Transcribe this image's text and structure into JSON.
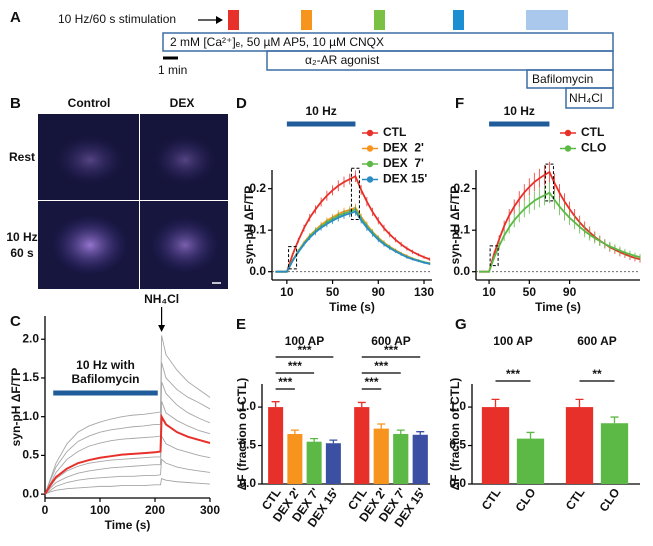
{
  "protocol": {
    "panel": "A",
    "stimulation": "10 Hz/60 s stimulation",
    "scale_bar": "1 min",
    "solutions": [
      "2 mM [Ca²⁺]ₑ, 50 µM AP5, 10 µM CNQX",
      "α₂-AR agonist",
      "Bafilomycin",
      "NH₄Cl"
    ]
  },
  "images": {
    "panel": "B",
    "columns": [
      "Control",
      "DEX"
    ],
    "rows": [
      [
        "Rest"
      ],
      [
        "10 Hz",
        "60 s"
      ]
    ]
  },
  "chart_data": [
    {
      "type": "line",
      "panel": "C",
      "xlabel": "Time (s)",
      "ylabel": "syn-pH ΔF/TP",
      "stim_label": [
        "10 Hz with",
        "Bafilomycin"
      ],
      "stim_bar": [
        15,
        205
      ],
      "arrow_label": "NH₄Cl",
      "arrow_x": 212,
      "x": [
        0,
        10,
        20,
        40,
        60,
        80,
        100,
        120,
        140,
        160,
        180,
        200,
        210,
        212,
        220,
        240,
        260,
        280,
        300
      ],
      "series": [
        {
          "color": "#a6a6a6",
          "values": [
            0,
            0.2,
            0.4,
            0.65,
            0.8,
            0.88,
            0.93,
            0.97,
            1.0,
            1.02,
            1.03,
            1.05,
            1.06,
            2.05,
            1.8,
            1.6,
            1.45,
            1.35,
            1.25
          ]
        },
        {
          "color": "#a6a6a6",
          "values": [
            0,
            0.18,
            0.35,
            0.55,
            0.68,
            0.75,
            0.8,
            0.83,
            0.85,
            0.87,
            0.88,
            0.9,
            0.9,
            1.7,
            1.5,
            1.35,
            1.25,
            1.18,
            1.1
          ]
        },
        {
          "color": "#a6a6a6",
          "values": [
            0,
            0.14,
            0.28,
            0.45,
            0.55,
            0.62,
            0.66,
            0.69,
            0.71,
            0.72,
            0.73,
            0.74,
            0.75,
            1.45,
            1.3,
            1.15,
            1.05,
            0.98,
            0.92
          ]
        },
        {
          "color": "#a6a6a6",
          "values": [
            0,
            0.1,
            0.2,
            0.3,
            0.36,
            0.4,
            0.42,
            0.44,
            0.45,
            0.46,
            0.47,
            0.48,
            0.48,
            1.2,
            1.05,
            0.95,
            0.88,
            0.82,
            0.78
          ]
        },
        {
          "color": "#a6a6a6",
          "values": [
            0,
            0.08,
            0.15,
            0.22,
            0.27,
            0.3,
            0.32,
            0.34,
            0.35,
            0.36,
            0.37,
            0.38,
            0.38,
            0.75,
            0.65,
            0.58,
            0.54,
            0.5,
            0.47
          ]
        },
        {
          "color": "#a6a6a6",
          "values": [
            0,
            0.05,
            0.1,
            0.15,
            0.18,
            0.2,
            0.21,
            0.22,
            0.23,
            0.23,
            0.24,
            0.24,
            0.25,
            0.45,
            0.4,
            0.35,
            0.32,
            0.3,
            0.28
          ]
        },
        {
          "color": "#a6a6a6",
          "values": [
            0,
            0.03,
            0.05,
            0.07,
            0.08,
            0.09,
            0.1,
            0.1,
            0.11,
            0.11,
            0.11,
            0.12,
            0.12,
            0.2,
            0.18,
            0.16,
            0.15,
            0.14,
            0.13
          ]
        },
        {
          "color": "#e8302a",
          "values": [
            0,
            0.12,
            0.22,
            0.33,
            0.4,
            0.44,
            0.47,
            0.49,
            0.51,
            0.52,
            0.53,
            0.54,
            0.55,
            1.0,
            0.9,
            0.8,
            0.74,
            0.7,
            0.66
          ]
        }
      ],
      "xlim": [
        0,
        300
      ],
      "xticks": [
        0,
        100,
        200,
        300
      ],
      "ylim": [
        -0.05,
        2.3
      ],
      "yticks": [
        {
          "value": 0,
          "label": "0.0"
        },
        {
          "value": 0.5,
          "label": "0.5"
        },
        {
          "value": 1,
          "label": "1.0"
        },
        {
          "value": 1.5,
          "label": "1.5"
        },
        {
          "value": 2,
          "label": "2.0"
        }
      ]
    },
    {
      "type": "line",
      "panel": "D",
      "xlabel": "Time (s)",
      "ylabel": "syn-pH ΔF/TP",
      "stim_label": "10 Hz",
      "stim_bar": [
        10,
        70
      ],
      "zero_line": true,
      "highlight_x": [
        15,
        70
      ],
      "x": [
        0,
        5,
        10,
        15,
        20,
        25,
        30,
        35,
        40,
        45,
        50,
        55,
        60,
        65,
        70,
        75,
        80,
        85,
        90,
        95,
        100,
        105,
        110,
        115,
        120,
        125,
        130,
        135
      ],
      "series": [
        {
          "name": "CTL",
          "color": "#e8302a",
          "values": [
            0,
            0,
            0,
            0.041,
            0.075,
            0.105,
            0.13,
            0.15,
            0.168,
            0.183,
            0.196,
            0.207,
            0.216,
            0.223,
            0.23,
            0.197,
            0.169,
            0.144,
            0.123,
            0.105,
            0.09,
            0.077,
            0.066,
            0.056,
            0.048,
            0.041,
            0.035,
            0.03
          ],
          "errors": [
            0,
            0,
            0,
            0.004,
            0.006,
            0.008,
            0.009,
            0.01,
            0.011,
            0.012,
            0.012,
            0.013,
            0.013,
            0.013,
            0.014,
            0.012,
            0.011,
            0.01,
            0.009,
            0.008,
            0.007,
            0.006,
            0.006,
            0.005,
            0.005,
            0.004,
            0.004,
            0.004
          ]
        },
        {
          "name": "DEX  2'",
          "color": "#f7941d",
          "values": [
            0,
            0,
            0,
            0.027,
            0.05,
            0.07,
            0.087,
            0.1,
            0.113,
            0.123,
            0.131,
            0.139,
            0.145,
            0.149,
            0.154,
            0.132,
            0.113,
            0.096,
            0.082,
            0.07,
            0.06,
            0.052,
            0.044,
            0.038,
            0.032,
            0.027,
            0.023,
            0.02
          ],
          "errors": [
            0,
            0,
            0,
            0.003,
            0.004,
            0.005,
            0.006,
            0.007,
            0.007,
            0.008,
            0.008,
            0.009,
            0.009,
            0.009,
            0.01,
            0.008,
            0.008,
            0.007,
            0.006,
            0.006,
            0.005,
            0.004,
            0.004,
            0.004,
            0.003,
            0.003,
            0.003,
            0.003
          ]
        },
        {
          "name": "DEX  7'",
          "color": "#5cb946",
          "values": [
            0,
            0,
            0,
            0.027,
            0.049,
            0.068,
            0.085,
            0.098,
            0.109,
            0.119,
            0.127,
            0.135,
            0.14,
            0.145,
            0.15,
            0.128,
            0.11,
            0.094,
            0.08,
            0.068,
            0.059,
            0.05,
            0.043,
            0.036,
            0.031,
            0.027,
            0.023,
            0.02
          ],
          "errors": [
            0,
            0,
            0,
            0.003,
            0.004,
            0.005,
            0.006,
            0.007,
            0.007,
            0.008,
            0.008,
            0.009,
            0.009,
            0.009,
            0.01,
            0.008,
            0.008,
            0.007,
            0.006,
            0.006,
            0.005,
            0.004,
            0.004,
            0.004,
            0.003,
            0.003,
            0.003,
            0.003
          ]
        },
        {
          "name": "DEX 15'",
          "color": "#2b8cc4",
          "values": [
            0,
            0,
            0,
            0.026,
            0.047,
            0.066,
            0.082,
            0.095,
            0.106,
            0.115,
            0.123,
            0.13,
            0.136,
            0.14,
            0.145,
            0.124,
            0.106,
            0.091,
            0.077,
            0.066,
            0.057,
            0.049,
            0.042,
            0.035,
            0.03,
            0.026,
            0.022,
            0.019
          ],
          "errors": [
            0,
            0,
            0,
            0.003,
            0.004,
            0.005,
            0.006,
            0.007,
            0.007,
            0.008,
            0.008,
            0.009,
            0.009,
            0.009,
            0.01,
            0.008,
            0.008,
            0.007,
            0.006,
            0.006,
            0.005,
            0.004,
            0.004,
            0.004,
            0.003,
            0.003,
            0.003,
            0.003
          ]
        }
      ],
      "xlim": [
        -3,
        137
      ],
      "xticks": [
        10,
        50,
        90,
        130
      ],
      "ylim": [
        -0.02,
        0.245
      ],
      "yticks": [
        {
          "value": 0,
          "label": "0.0"
        },
        {
          "value": 0.1,
          "label": "0.1"
        },
        {
          "value": 0.2,
          "label": "0.2"
        }
      ]
    },
    {
      "type": "line",
      "panel": "F",
      "xlabel": "Time (s)",
      "ylabel": "syn-pH ΔF/TP",
      "stim_label": "10 Hz",
      "stim_bar": [
        10,
        70
      ],
      "zero_line": true,
      "highlight_x": [
        15,
        70
      ],
      "x": [
        0,
        5,
        10,
        15,
        20,
        25,
        30,
        35,
        40,
        45,
        50,
        55,
        60,
        65,
        70,
        75,
        80,
        85,
        90,
        95,
        100,
        105,
        110,
        115,
        120,
        125,
        130,
        135,
        140,
        145,
        150,
        155,
        160
      ],
      "series": [
        {
          "name": "CTL",
          "color": "#e8302a",
          "values": [
            0,
            0,
            0,
            0.043,
            0.078,
            0.11,
            0.136,
            0.157,
            0.175,
            0.191,
            0.204,
            0.216,
            0.225,
            0.233,
            0.24,
            0.214,
            0.19,
            0.169,
            0.151,
            0.134,
            0.119,
            0.106,
            0.095,
            0.084,
            0.075,
            0.067,
            0.059,
            0.053,
            0.047,
            0.042,
            0.037,
            0.033,
            0.03
          ],
          "errors": [
            0,
            0,
            0,
            0.006,
            0.01,
            0.013,
            0.015,
            0.017,
            0.019,
            0.02,
            0.021,
            0.022,
            0.023,
            0.024,
            0.025,
            0.023,
            0.021,
            0.02,
            0.018,
            0.017,
            0.016,
            0.015,
            0.014,
            0.013,
            0.012,
            0.011,
            0.011,
            0.01,
            0.01,
            0.009,
            0.009,
            0.008,
            0.008
          ]
        },
        {
          "name": "CLO",
          "color": "#5cb946",
          "values": [
            0,
            0,
            0,
            0.034,
            0.062,
            0.087,
            0.107,
            0.124,
            0.138,
            0.151,
            0.161,
            0.171,
            0.178,
            0.184,
            0.19,
            0.173,
            0.157,
            0.143,
            0.13,
            0.119,
            0.108,
            0.098,
            0.089,
            0.081,
            0.074,
            0.067,
            0.061,
            0.056,
            0.051,
            0.046,
            0.042,
            0.038,
            0.035
          ],
          "errors": [
            0,
            0,
            0,
            0.006,
            0.01,
            0.013,
            0.015,
            0.017,
            0.019,
            0.02,
            0.021,
            0.022,
            0.023,
            0.024,
            0.025,
            0.023,
            0.021,
            0.02,
            0.018,
            0.017,
            0.016,
            0.015,
            0.014,
            0.013,
            0.012,
            0.011,
            0.011,
            0.01,
            0.01,
            0.009,
            0.009,
            0.008,
            0.008
          ]
        }
      ],
      "xlim": [
        -3,
        160
      ],
      "xticks": [
        10,
        50,
        90
      ],
      "ylim": [
        -0.02,
        0.245
      ],
      "yticks": [
        {
          "value": 0,
          "label": "0.0"
        },
        {
          "value": 0.1,
          "label": "0.1"
        },
        {
          "value": 0.2,
          "label": "0.2"
        }
      ]
    },
    {
      "type": "bar",
      "panel": "E",
      "ylabel": "ΔF (fraction of CTL)",
      "categories": [
        "CTL",
        "DEX 2'",
        "DEX 7'",
        "DEX 15'"
      ],
      "colors": [
        "#e8302a",
        "#f7941d",
        "#5cb946",
        "#3b4fa3"
      ],
      "groups": [
        {
          "name": "100 AP",
          "values": [
            1.0,
            0.65,
            0.55,
            0.53
          ],
          "errors": [
            0.07,
            0.05,
            0.04,
            0.04
          ],
          "significance": [
            "***",
            "***",
            "***"
          ]
        },
        {
          "name": "600 AP",
          "values": [
            1.0,
            0.72,
            0.65,
            0.64
          ],
          "errors": [
            0.06,
            0.06,
            0.05,
            0.04
          ],
          "significance": [
            "***",
            "***",
            "***"
          ]
        }
      ],
      "ylim": [
        0,
        1.3
      ],
      "yticks": [
        {
          "value": 0,
          "label": "0.0"
        },
        {
          "value": 0.5,
          "label": "0.5"
        },
        {
          "value": 1,
          "label": "1.0"
        }
      ]
    },
    {
      "type": "bar",
      "panel": "G",
      "ylabel": "ΔF (fraction of CTL)",
      "categories": [
        "CTL",
        "CLO"
      ],
      "colors": [
        "#e8302a",
        "#5cb946"
      ],
      "groups": [
        {
          "name": "100 AP",
          "values": [
            1.0,
            0.59
          ],
          "errors": [
            0.1,
            0.08
          ],
          "significance": [
            "***"
          ]
        },
        {
          "name": "600 AP",
          "values": [
            1.0,
            0.79
          ],
          "errors": [
            0.1,
            0.08
          ],
          "significance": [
            "**"
          ]
        }
      ],
      "ylim": [
        0,
        1.3
      ],
      "yticks": [
        {
          "value": 0,
          "label": "0.0"
        },
        {
          "value": 0.5,
          "label": "0.5"
        },
        {
          "value": 1,
          "label": "1.0"
        }
      ]
    }
  ]
}
